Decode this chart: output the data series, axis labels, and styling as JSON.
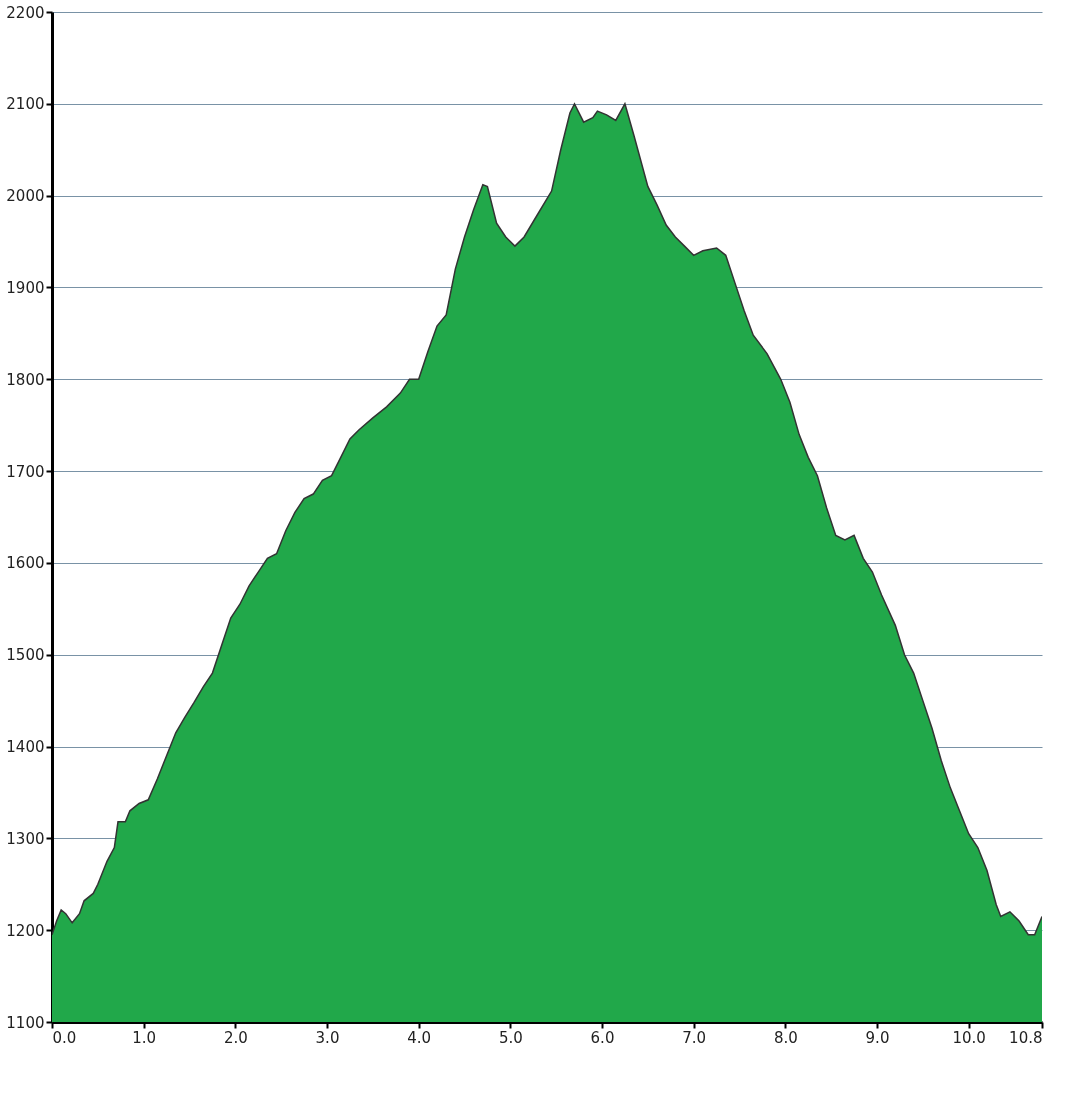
{
  "chart_data": {
    "type": "area",
    "x": [
      0.0,
      0.05,
      0.1,
      0.15,
      0.22,
      0.3,
      0.35,
      0.45,
      0.5,
      0.6,
      0.68,
      0.72,
      0.8,
      0.85,
      0.95,
      1.05,
      1.15,
      1.25,
      1.35,
      1.45,
      1.55,
      1.65,
      1.75,
      1.85,
      1.95,
      2.05,
      2.15,
      2.25,
      2.35,
      2.45,
      2.55,
      2.65,
      2.75,
      2.85,
      2.95,
      3.05,
      3.15,
      3.25,
      3.35,
      3.5,
      3.65,
      3.8,
      3.9,
      4.0,
      4.1,
      4.2,
      4.3,
      4.4,
      4.5,
      4.6,
      4.7,
      4.75,
      4.85,
      4.95,
      5.05,
      5.15,
      5.3,
      5.45,
      5.55,
      5.65,
      5.7,
      5.8,
      5.9,
      5.95,
      6.05,
      6.15,
      6.25,
      6.35,
      6.5,
      6.6,
      6.7,
      6.8,
      6.9,
      7.0,
      7.1,
      7.25,
      7.35,
      7.45,
      7.55,
      7.65,
      7.8,
      7.95,
      8.05,
      8.15,
      8.25,
      8.35,
      8.45,
      8.55,
      8.65,
      8.75,
      8.85,
      8.95,
      9.05,
      9.2,
      9.3,
      9.4,
      9.5,
      9.6,
      9.7,
      9.8,
      9.9,
      10.0,
      10.1,
      10.2,
      10.3,
      10.35,
      10.45,
      10.55,
      10.65,
      10.72,
      10.8
    ],
    "series": [
      {
        "color": "#21a84a",
        "values": [
          1195,
          1210,
          1222,
          1218,
          1208,
          1218,
          1232,
          1240,
          1250,
          1275,
          1290,
          1318,
          1318,
          1330,
          1338,
          1342,
          1365,
          1390,
          1415,
          1432,
          1448,
          1465,
          1480,
          1510,
          1540,
          1555,
          1575,
          1590,
          1605,
          1610,
          1635,
          1655,
          1670,
          1675,
          1690,
          1695,
          1715,
          1735,
          1745,
          1758,
          1770,
          1785,
          1800,
          1800,
          1830,
          1858,
          1870,
          1920,
          1955,
          1985,
          2012,
          2010,
          1970,
          1955,
          1945,
          1955,
          1980,
          2005,
          2050,
          2090,
          2100,
          2080,
          2085,
          2092,
          2088,
          2082,
          2100,
          2065,
          2010,
          1990,
          1968,
          1955,
          1945,
          1935,
          1940,
          1943,
          1935,
          1905,
          1875,
          1848,
          1828,
          1800,
          1775,
          1740,
          1715,
          1695,
          1660,
          1630,
          1625,
          1630,
          1605,
          1590,
          1565,
          1532,
          1500,
          1480,
          1450,
          1420,
          1385,
          1355,
          1330,
          1305,
          1290,
          1265,
          1228,
          1215,
          1220,
          1210,
          1195,
          1195,
          1215
        ]
      }
    ],
    "xlim": [
      0,
      10.8
    ],
    "xticks": [
      {
        "value": 0,
        "label": "0.0"
      },
      {
        "value": 1,
        "label": "1.0"
      },
      {
        "value": 2,
        "label": "2.0"
      },
      {
        "value": 3,
        "label": "3.0"
      },
      {
        "value": 4,
        "label": "4.0"
      },
      {
        "value": 5,
        "label": "5.0"
      },
      {
        "value": 6,
        "label": "6.0"
      },
      {
        "value": 7,
        "label": "7.0"
      },
      {
        "value": 8,
        "label": "8.0"
      },
      {
        "value": 9,
        "label": "9.0"
      },
      {
        "value": 10,
        "label": "10.0"
      },
      {
        "value": 10.8,
        "label": "10.8"
      }
    ],
    "ylim": [
      1100,
      2200
    ],
    "yticks": [
      1100,
      1200,
      1300,
      1400,
      1500,
      1600,
      1700,
      1800,
      1900,
      2000,
      2100,
      2200
    ],
    "grid": "y",
    "marker": "none"
  }
}
